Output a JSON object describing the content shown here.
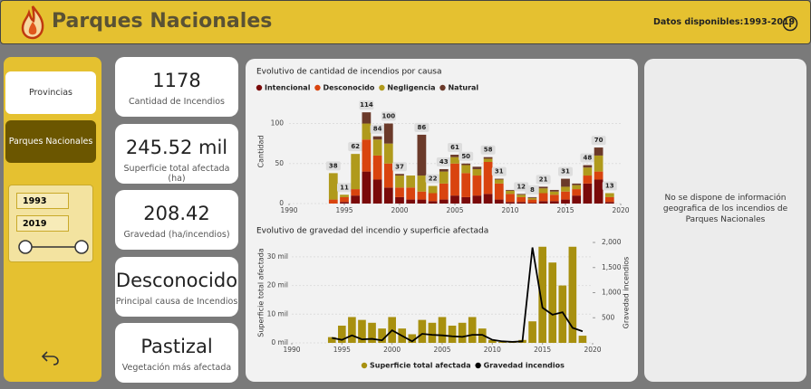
{
  "header": {
    "title": "Parques Nacionales",
    "info": "Datos disponibles:1993-2019"
  },
  "nav": [
    "Provincias",
    "Parques Nacionales"
  ],
  "slicer": {
    "from": "1993",
    "to": "2019"
  },
  "kpis": [
    {
      "value": "1178",
      "label": "Cantidad de Incendios"
    },
    {
      "value": "245.52 mil",
      "label": "Superficie total afectada (ha)"
    },
    {
      "value": "208.42",
      "label": "Gravedad (ha/incendios)"
    },
    {
      "value": "Desconocido",
      "label": "Principal causa de Incendios"
    },
    {
      "value": "Pastizal",
      "label": "Vegetación más afectada"
    }
  ],
  "map_note": "No se dispone de información geografica de los incendios de Parques Nacionales",
  "chart_data": [
    {
      "type": "stacked_bar",
      "title": "Evolutivo de cantidad de incendios por causa",
      "y_label": "Cantidad",
      "legend": "top",
      "x": [
        1994,
        1995,
        1996,
        1997,
        1998,
        1999,
        2000,
        2001,
        2002,
        2003,
        2004,
        2005,
        2006,
        2007,
        2008,
        2009,
        2010,
        2011,
        2012,
        2013,
        2014,
        2015,
        2016,
        2017,
        2018,
        2019
      ],
      "xlim": [
        1990,
        2020
      ],
      "xticks": [
        1990,
        1995,
        2000,
        2005,
        2010,
        2015,
        2020
      ],
      "ylim": [
        0,
        130
      ],
      "yticks": [
        0,
        50,
        100
      ],
      "series": [
        {
          "name": "Intencional",
          "color": "#7a0a0a",
          "values": [
            0,
            2,
            10,
            40,
            30,
            20,
            8,
            5,
            5,
            3,
            5,
            10,
            8,
            10,
            12,
            5,
            2,
            2,
            1,
            3,
            3,
            5,
            10,
            25,
            30,
            2
          ]
        },
        {
          "name": "Desconocido",
          "color": "#d9440f",
          "values": [
            5,
            6,
            8,
            40,
            30,
            30,
            12,
            15,
            10,
            10,
            20,
            40,
            30,
            25,
            40,
            20,
            10,
            6,
            4,
            10,
            8,
            10,
            8,
            10,
            10,
            6
          ]
        },
        {
          "name": "Negligencia",
          "color": "#b09a1c",
          "values": [
            33,
            3,
            44,
            20,
            20,
            25,
            15,
            15,
            20,
            9,
            15,
            8,
            10,
            8,
            4,
            5,
            4,
            3,
            2,
            6,
            4,
            6,
            5,
            10,
            20,
            5
          ]
        },
        {
          "name": "Natural",
          "color": "#6b3a2a",
          "values": [
            0,
            0,
            0,
            14,
            4,
            25,
            2,
            0,
            51,
            0,
            3,
            3,
            2,
            3,
            2,
            1,
            1,
            1,
            1,
            2,
            2,
            10,
            2,
            3,
            10,
            0
          ]
        }
      ],
      "totals": [
        38,
        11,
        62,
        114,
        84,
        100,
        37,
        null,
        86,
        22,
        43,
        61,
        50,
        null,
        58,
        31,
        null,
        12,
        8,
        21,
        null,
        31,
        null,
        48,
        70,
        13
      ]
    },
    {
      "type": "bar_line",
      "title": "Evolutivo de gravedad del incendio y superficie afectada",
      "y_label": "Superficie total afectada",
      "y2_label": "Gravedad incendios",
      "legend": "bottom",
      "x": [
        1994,
        1995,
        1996,
        1997,
        1998,
        1999,
        2000,
        2001,
        2002,
        2003,
        2004,
        2005,
        2006,
        2007,
        2008,
        2009,
        2010,
        2011,
        2012,
        2013,
        2014,
        2015,
        2016,
        2017,
        2018,
        2019
      ],
      "xlim": [
        1990,
        2020
      ],
      "xticks": [
        1990,
        1995,
        2000,
        2005,
        2010,
        2015,
        2020
      ],
      "ylim": [
        0,
        35000
      ],
      "yticks": [
        {
          "value": 0,
          "label": "0 mil"
        },
        {
          "value": 10000,
          "label": "10 mil"
        },
        {
          "value": 20000,
          "label": "20 mil"
        },
        {
          "value": 30000,
          "label": "30 mil"
        }
      ],
      "y2lim": [
        0,
        2000
      ],
      "y2ticks": [
        500,
        {
          "value": 1000,
          "label": "1,000"
        },
        {
          "value": 1500,
          "label": "1,500"
        },
        {
          "value": 2000,
          "label": "2,000"
        }
      ],
      "series": [
        {
          "name": "Superficie total afectada",
          "color": "#a8900f",
          "kind": "bar",
          "values": [
            2000,
            6000,
            9000,
            8000,
            7000,
            5000,
            9000,
            5000,
            3000,
            8000,
            7000,
            9000,
            6000,
            7000,
            9000,
            5000,
            1000,
            300,
            200,
            1000,
            7500,
            33500,
            28000,
            20000,
            33500,
            2500
          ]
        },
        {
          "name": "Gravedad incendios",
          "color": "#000000",
          "kind": "line",
          "axis": "y2",
          "values": [
            100,
            60,
            150,
            70,
            80,
            50,
            250,
            140,
            30,
            180,
            160,
            150,
            130,
            120,
            160,
            160,
            60,
            30,
            20,
            30,
            1900,
            700,
            560,
            610,
            300,
            230
          ]
        }
      ]
    }
  ]
}
